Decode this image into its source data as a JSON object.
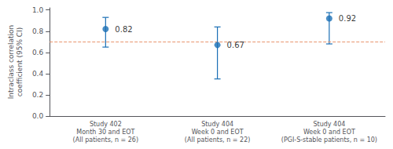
{
  "chart_data": {
    "type": "scatter",
    "categories": [
      "Study 402\nMonth 30 and EOT\n(All patients, n = 26)",
      "Study 404\nWeek 0 and EOT\n(All patients, n = 22)",
      "Study 404\nWeek 0 and EOT\n(PGI-S-stable patients, n = 10)"
    ],
    "values": [
      0.82,
      0.67,
      0.92
    ],
    "error_low": [
      0.17,
      0.32,
      0.24
    ],
    "error_high": [
      0.11,
      0.17,
      0.055
    ],
    "color": "#1A6FB5",
    "marker": "circle",
    "data_labels": true,
    "reference_line": {
      "value": 0.7,
      "color": "#E8956E",
      "line_style": "dashed"
    },
    "ylabel": "Intraclass correlation\ncoefficient (95% CI)",
    "ylim": [
      0.0,
      1.02
    ],
    "yticks": [
      {
        "value": 0.0,
        "label": "0.0"
      },
      0.2,
      0.4,
      0.6,
      0.8,
      {
        "value": 1.0,
        "label": "1.0"
      }
    ],
    "grid": false
  }
}
